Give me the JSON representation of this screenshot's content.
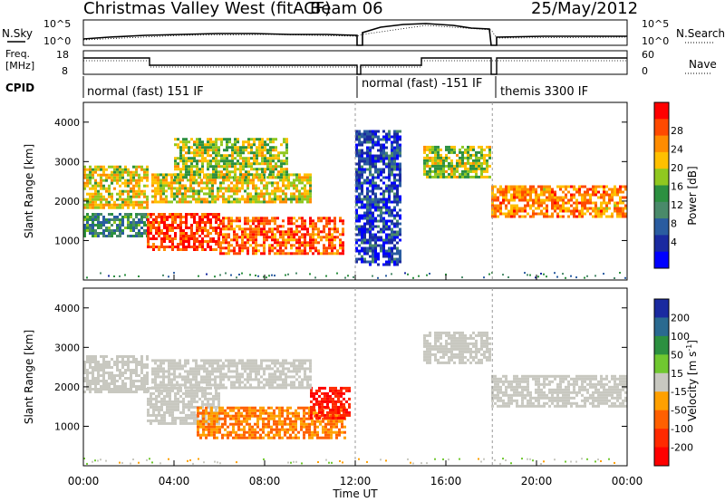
{
  "header": {
    "station": "Christmas Valley West (fitACF)",
    "beam": "Beam 06",
    "date": "25/May/2012"
  },
  "top_panels": {
    "nsky_label": "N.Sky",
    "nsky_ticks": [
      "10^5",
      "10^0"
    ],
    "nsearch_label": "N.Search",
    "nsearch_ticks": [
      "10^5",
      "10^0"
    ],
    "freq_label_1": "Freq.",
    "freq_label_2": "[MHz]",
    "freq_ticks": [
      "18",
      "8"
    ],
    "nave_label": "Nave",
    "nave_ticks": [
      "60",
      "0"
    ],
    "cpid_label": "CPID",
    "cpid_segments": [
      "normal (fast) 151 IF",
      "normal (fast) -151 IF",
      "themis 3300 IF"
    ]
  },
  "power_bar": {
    "label": "Power [dB]",
    "ticks": [
      "28",
      "24",
      "20",
      "16",
      "12",
      "8",
      "4"
    ],
    "colors": [
      "#ff0000",
      "#ff4a00",
      "#ff8c00",
      "#ffc000",
      "#90c820",
      "#2c9040",
      "#4a8a6a",
      "#2a5ca0",
      "#1a2aa0",
      "#0000ff"
    ]
  },
  "velocity_bar": {
    "label": "Velocity [m s",
    "label_sup": "-1",
    "label_end": "]",
    "ticks": [
      "200",
      "100",
      "50",
      "15",
      "-15",
      "-50",
      "-100",
      "-200"
    ],
    "colors": [
      "#1a2aa0",
      "#2a6a90",
      "#2c9040",
      "#70c830",
      "#c8c8c0",
      "#ffa000",
      "#ff6000",
      "#ff2a00",
      "#ff0000"
    ]
  },
  "axes": {
    "ylabel": "Slant Range [km]",
    "xlabel": "Time UT",
    "yticks": [
      "4000",
      "3000",
      "2000",
      "1000"
    ],
    "xticks": [
      "00:00",
      "04:00",
      "08:00",
      "12:00",
      "16:00",
      "20:00",
      "00:00"
    ]
  },
  "chart_data": [
    {
      "type": "heatmap",
      "title": "",
      "quantity": "Power [dB]",
      "xlabel": "Time UT",
      "ylabel": "Slant Range [km]",
      "x_range_hours": [
        0,
        24
      ],
      "ylim": [
        0,
        4500
      ],
      "colorbar_range": [
        2,
        30
      ],
      "echo_regions": [
        {
          "t": [
            0.0,
            2.8
          ],
          "r": [
            1800,
            2900
          ],
          "power_dB": 20
        },
        {
          "t": [
            0.0,
            2.8
          ],
          "r": [
            1100,
            1700
          ],
          "power_dB": 12
        },
        {
          "t": [
            2.8,
            6.0
          ],
          "r": [
            800,
            1700
          ],
          "power_dB": 28
        },
        {
          "t": [
            6.0,
            11.5
          ],
          "r": [
            700,
            1600
          ],
          "power_dB": 26
        },
        {
          "t": [
            3.0,
            10.0
          ],
          "r": [
            2000,
            2700
          ],
          "power_dB": 20
        },
        {
          "t": [
            4.0,
            9.0
          ],
          "r": [
            2600,
            3600
          ],
          "power_dB": 18
        },
        {
          "t": [
            12.0,
            14.0
          ],
          "r": [
            400,
            3800
          ],
          "power_dB": 6
        },
        {
          "t": [
            15.0,
            18.0
          ],
          "r": [
            2600,
            3400
          ],
          "power_dB": 18
        },
        {
          "t": [
            18.0,
            24.0
          ],
          "r": [
            1600,
            2400
          ],
          "power_dB": 24
        }
      ]
    },
    {
      "type": "heatmap",
      "title": "",
      "quantity": "Velocity [m s-1]",
      "xlabel": "Time UT",
      "ylabel": "Slant Range [km]",
      "x_range_hours": [
        0,
        24
      ],
      "ylim": [
        0,
        4500
      ],
      "colorbar_range": [
        -250,
        250
      ],
      "echo_regions": [
        {
          "t": [
            0.0,
            2.8
          ],
          "r": [
            1900,
            2800
          ],
          "velocity": 0
        },
        {
          "t": [
            2.8,
            6.0
          ],
          "r": [
            1100,
            2000
          ],
          "velocity": 0
        },
        {
          "t": [
            5.0,
            11.5
          ],
          "r": [
            700,
            1500
          ],
          "velocity": -50
        },
        {
          "t": [
            10.0,
            11.8
          ],
          "r": [
            1200,
            2000
          ],
          "velocity": -200
        },
        {
          "t": [
            3.0,
            10.0
          ],
          "r": [
            2000,
            2700
          ],
          "velocity": 0
        },
        {
          "t": [
            15.0,
            18.0
          ],
          "r": [
            2600,
            3400
          ],
          "velocity": 0
        },
        {
          "t": [
            18.0,
            24.0
          ],
          "r": [
            1500,
            2300
          ],
          "velocity": 0
        }
      ]
    }
  ]
}
